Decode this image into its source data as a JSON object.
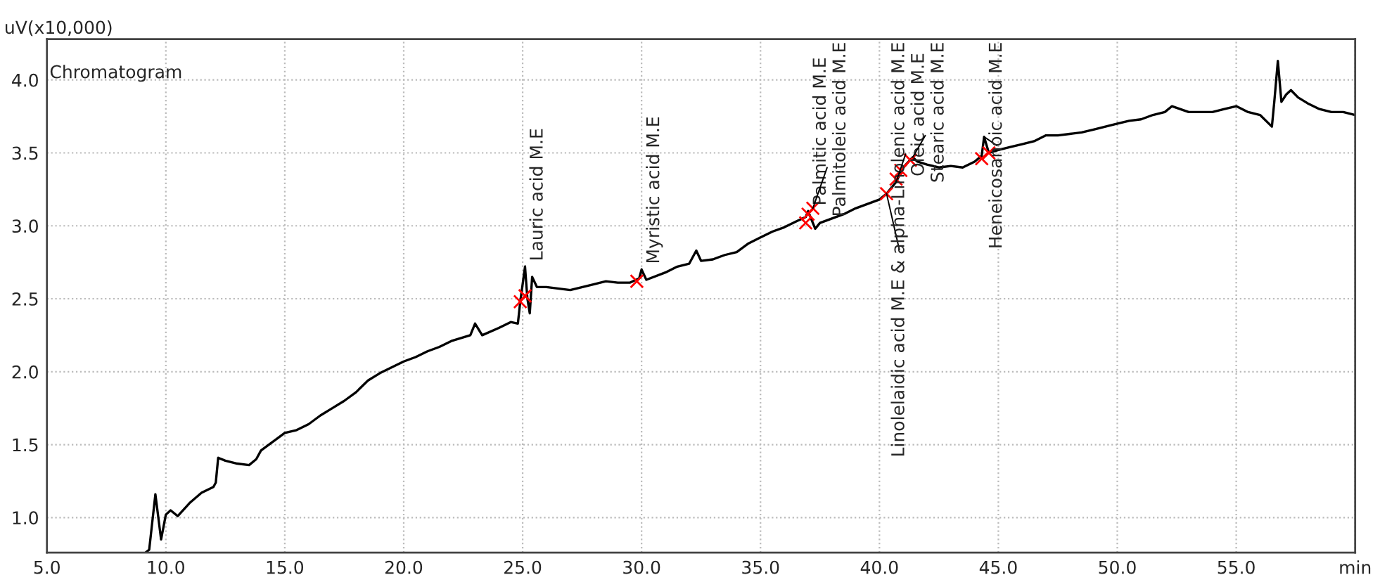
{
  "chart_data": {
    "type": "line",
    "title": "Chromatogram",
    "ylabel": "uV(x10,000)",
    "xlim": [
      5.0,
      60.0
    ],
    "ylim": [
      0.76,
      4.28
    ],
    "xticks": [
      {
        "value": 5,
        "label": "5.0"
      },
      {
        "value": 10,
        "label": "10.0"
      },
      {
        "value": 15,
        "label": "15.0"
      },
      {
        "value": 20,
        "label": "20.0"
      },
      {
        "value": 25,
        "label": "25.0"
      },
      {
        "value": 30,
        "label": "30.0"
      },
      {
        "value": 35,
        "label": "35.0"
      },
      {
        "value": 40,
        "label": "40.0"
      },
      {
        "value": 45,
        "label": "45.0"
      },
      {
        "value": 50,
        "label": "50.0"
      },
      {
        "value": 55,
        "label": "55.0"
      },
      {
        "value": 60,
        "label": "min"
      }
    ],
    "yticks": [
      {
        "value": 1,
        "label": "1.0"
      },
      1.5,
      {
        "value": 2,
        "label": "2.0"
      },
      2.5,
      {
        "value": 3,
        "label": "3.0"
      },
      3.5,
      {
        "value": 4,
        "label": "4.0"
      }
    ],
    "grid": true,
    "marker": "none",
    "line_style": "solid",
    "series": [
      {
        "color": "#000000",
        "x": [
          9.15,
          9.3,
          9.56,
          9.8,
          10.0,
          10.2,
          10.5,
          11.0,
          11.5,
          12.0,
          12.1,
          12.2,
          12.5,
          13.0,
          13.5,
          13.8,
          14.0,
          14.5,
          15.0,
          15.5,
          16.0,
          16.5,
          17.0,
          17.5,
          18.0,
          18.5,
          19.0,
          19.5,
          20.0,
          20.5,
          21.0,
          21.5,
          22.0,
          22.8,
          23.0,
          23.3,
          24.0,
          24.5,
          24.8,
          24.9,
          25.1,
          25.2,
          25.3,
          25.4,
          25.6,
          26.0,
          27.0,
          28.0,
          28.5,
          29.0,
          29.5,
          29.9,
          30.0,
          30.2,
          31.0,
          31.5,
          32.0,
          32.3,
          32.5,
          33.0,
          33.5,
          34.0,
          34.5,
          35.0,
          35.5,
          36.0,
          36.5,
          36.9,
          37.0,
          37.3,
          37.5,
          38.0,
          38.5,
          39.0,
          39.5,
          40.0,
          40.3,
          40.7,
          41.0,
          41.4,
          41.6,
          42.0,
          42.5,
          43.0,
          43.5,
          44.0,
          44.3,
          44.4,
          44.6,
          45.0,
          45.5,
          46.0,
          46.5,
          47.0,
          47.5,
          48.0,
          48.5,
          49.0,
          49.5,
          50.0,
          50.5,
          51.0,
          51.5,
          52.0,
          52.3,
          53.0,
          53.5,
          54.0,
          54.5,
          55.0,
          55.5,
          56.0,
          56.5,
          56.6,
          56.75,
          56.9,
          57.1,
          57.3,
          57.6,
          58.0,
          58.5,
          59.0,
          59.5,
          60.0
        ],
        "values": [
          0.76,
          0.78,
          1.16,
          0.85,
          1.02,
          1.05,
          1.01,
          1.1,
          1.17,
          1.21,
          1.24,
          1.41,
          1.39,
          1.37,
          1.36,
          1.4,
          1.46,
          1.52,
          1.58,
          1.6,
          1.64,
          1.7,
          1.75,
          1.8,
          1.86,
          1.94,
          1.99,
          2.03,
          2.07,
          2.1,
          2.14,
          2.17,
          2.21,
          2.25,
          2.33,
          2.25,
          2.3,
          2.34,
          2.33,
          2.48,
          2.72,
          2.5,
          2.4,
          2.65,
          2.58,
          2.58,
          2.56,
          2.6,
          2.62,
          2.61,
          2.61,
          2.64,
          2.7,
          2.63,
          2.68,
          2.72,
          2.74,
          2.83,
          2.76,
          2.77,
          2.8,
          2.82,
          2.88,
          2.92,
          2.96,
          2.99,
          3.03,
          3.06,
          3.1,
          2.98,
          3.02,
          3.05,
          3.08,
          3.12,
          3.15,
          3.18,
          3.22,
          3.3,
          3.4,
          3.47,
          3.44,
          3.42,
          3.4,
          3.41,
          3.4,
          3.44,
          3.48,
          3.61,
          3.5,
          3.52,
          3.54,
          3.56,
          3.58,
          3.62,
          3.62,
          3.63,
          3.64,
          3.66,
          3.68,
          3.7,
          3.72,
          3.73,
          3.76,
          3.78,
          3.82,
          3.78,
          3.78,
          3.78,
          3.8,
          3.82,
          3.78,
          3.76,
          3.68,
          3.85,
          4.13,
          3.85,
          3.9,
          3.93,
          3.88,
          3.84,
          3.8,
          3.78,
          3.78,
          3.76
        ]
      },
      {
        "type": "scatter",
        "color": "#ff0000",
        "marker": "cross",
        "x": [
          24.9,
          25.1,
          29.8,
          36.9,
          37.0,
          37.2,
          40.3,
          40.7,
          40.9,
          41.3,
          44.3,
          44.6
        ],
        "values": [
          2.48,
          2.52,
          2.62,
          3.02,
          3.08,
          3.12,
          3.22,
          3.32,
          3.38,
          3.45,
          3.46,
          3.5
        ]
      }
    ],
    "annotations": [
      {
        "text": "Lauric acid M.E",
        "x": 25.1,
        "y": 2.72
      },
      {
        "text": "Myristic acid M.E",
        "x": 30.0,
        "y": 2.7
      },
      {
        "text": "Palmitic acid M.E",
        "x": 37.0,
        "y": 3.1
      },
      {
        "text": "Palmitoleic acid M.E",
        "x": 37.2,
        "y": 3.12
      },
      {
        "text": "Linolelaidic acid M.E & alpha-Linolenic acid M.E",
        "x": 40.3,
        "y": 3.22
      },
      {
        "text": "Oleic acid M.E",
        "x": 40.7,
        "y": 3.3
      },
      {
        "text": "Stearic acid M.E",
        "x": 41.4,
        "y": 3.47
      },
      {
        "text": "Heneicosanoic acid M.E",
        "x": 44.4,
        "y": 3.61
      }
    ]
  }
}
